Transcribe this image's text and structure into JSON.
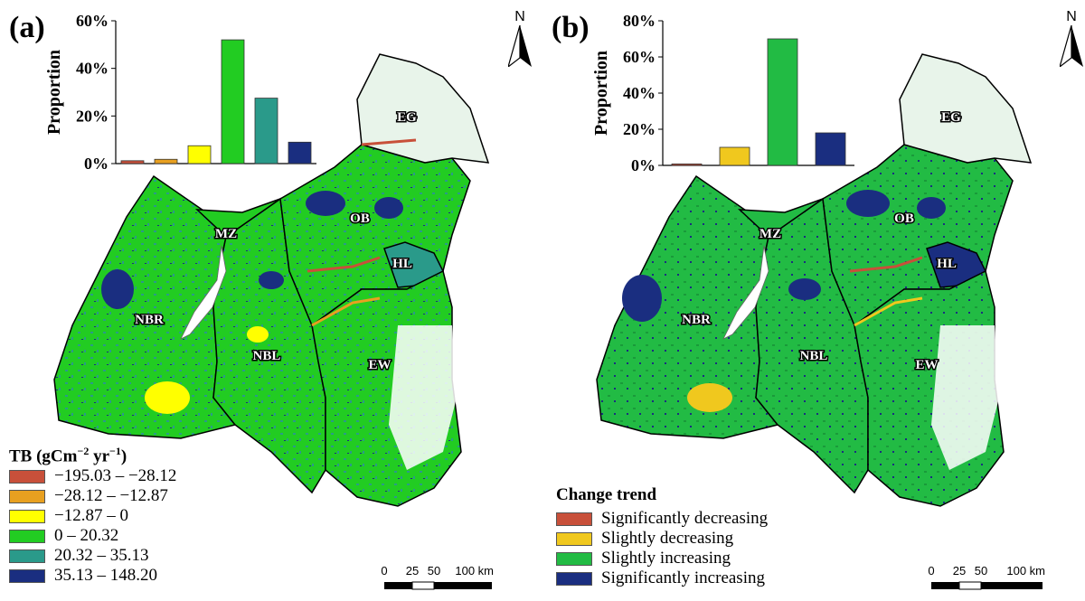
{
  "panel_a": {
    "label": "(a)",
    "north": "N",
    "regions": [
      "EG",
      "OB",
      "MZ",
      "HL",
      "NBR",
      "NBL",
      "EW"
    ],
    "legend": {
      "title_main": "TB (gCm",
      "title_exp1": "−2",
      "title_mid": " yr",
      "title_exp2": "−1",
      "title_end": ")",
      "items": [
        {
          "label": "−195.03 – −28.12",
          "color": "#c8503a"
        },
        {
          "label": "−28.12 – −12.87",
          "color": "#e8a020"
        },
        {
          "label": "−12.87 – 0",
          "color": "#ffff00"
        },
        {
          "label": "0 – 20.32",
          "color": "#22cc22"
        },
        {
          "label": "20.32 – 35.13",
          "color": "#2a9a8a"
        },
        {
          "label": "35.13 – 148.20",
          "color": "#1a2e80"
        }
      ]
    },
    "scale": {
      "ticks": [
        "0",
        "25",
        "50",
        "100 km"
      ]
    }
  },
  "panel_b": {
    "label": "(b)",
    "north": "N",
    "regions": [
      "EG",
      "OB",
      "MZ",
      "HL",
      "NBR",
      "NBL",
      "EW"
    ],
    "legend": {
      "title": "Change trend",
      "items": [
        {
          "label": "Significantly decreasing",
          "color": "#c8503a"
        },
        {
          "label": "Slightly decreasing",
          "color": "#f0c81e"
        },
        {
          "label": "Slightly increasing",
          "color": "#22bb44"
        },
        {
          "label": "Significantly increasing",
          "color": "#1a2e80"
        }
      ]
    },
    "scale": {
      "ticks": [
        "0",
        "25",
        "50",
        "100 km"
      ]
    }
  },
  "chart_data": [
    {
      "type": "bar",
      "ylabel": "Proportion",
      "yticks": [
        "0%",
        "20%",
        "40%",
        "60%"
      ],
      "ylim": [
        0,
        60
      ],
      "values": [
        1.2,
        1.8,
        7.5,
        52,
        27.5,
        9
      ],
      "colors": [
        "#c8503a",
        "#e8a020",
        "#ffff00",
        "#22cc22",
        "#2a9a8a",
        "#1a2e80"
      ]
    },
    {
      "type": "bar",
      "ylabel": "Proportion",
      "yticks": [
        "0%",
        "20%",
        "40%",
        "60%",
        "80%"
      ],
      "ylim": [
        0,
        80
      ],
      "values": [
        0.8,
        10,
        70,
        18
      ],
      "colors": [
        "#c8503a",
        "#f0c81e",
        "#22bb44",
        "#1a2e80"
      ]
    }
  ]
}
